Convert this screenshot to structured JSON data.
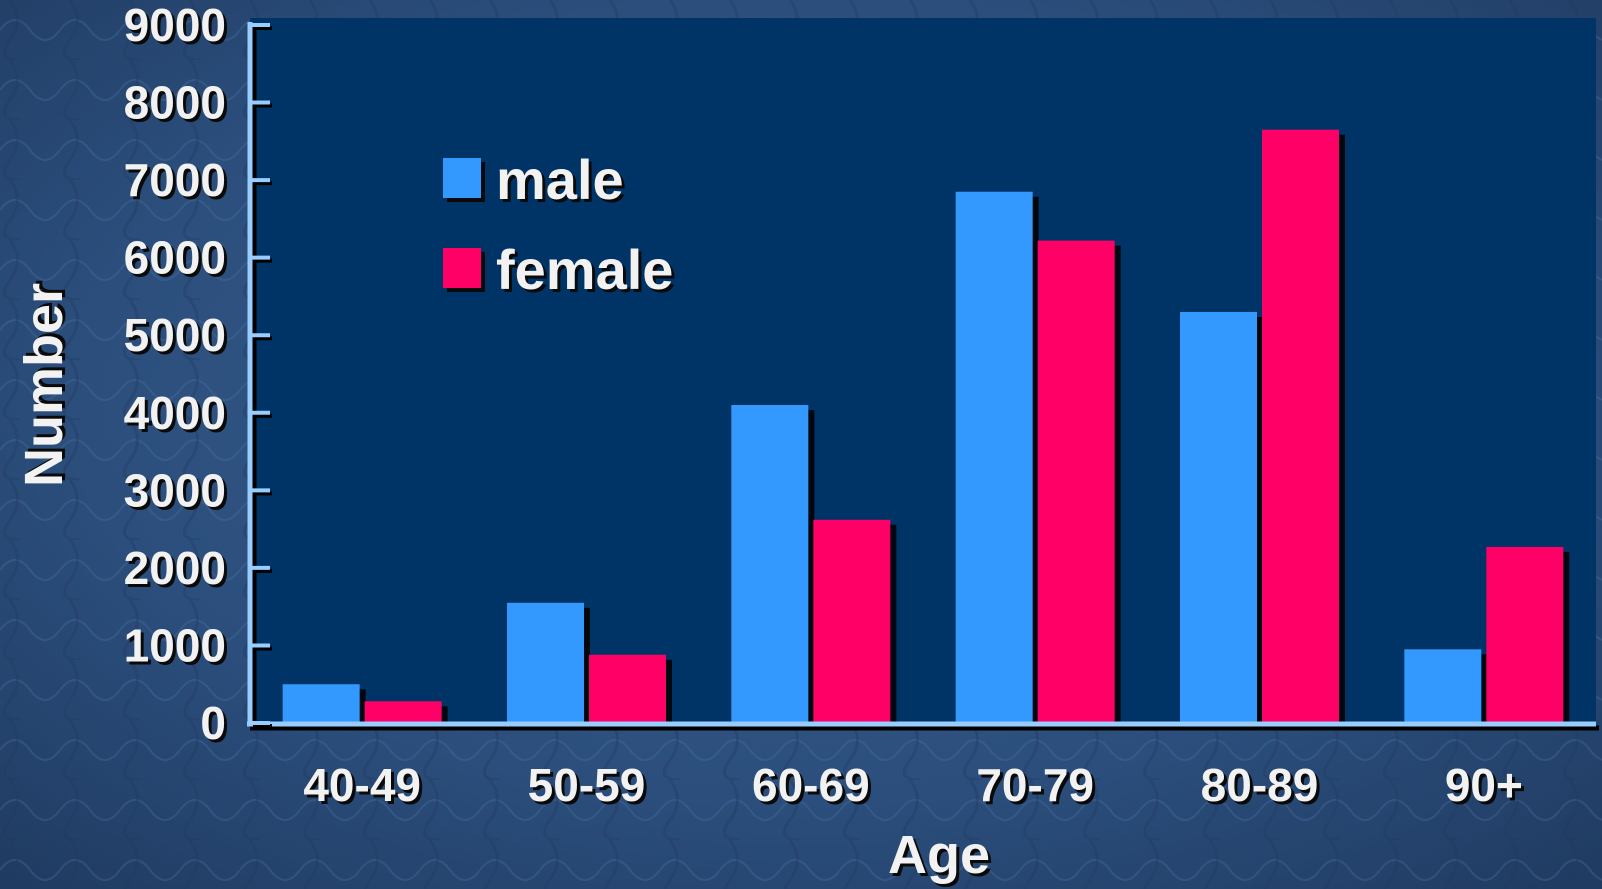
{
  "chart_data": {
    "type": "bar",
    "categories": [
      "40-49",
      "50-59",
      "60-69",
      "70-79",
      "80-89",
      "90+"
    ],
    "series": [
      {
        "name": "male",
        "values": [
          500,
          1550,
          4100,
          6850,
          5300,
          950
        ]
      },
      {
        "name": "female",
        "values": [
          280,
          880,
          2620,
          6220,
          7650,
          2270
        ]
      }
    ],
    "xlabel": "Age",
    "ylabel": "Number",
    "ylim": [
      0,
      9000
    ],
    "yticks": [
      0,
      1000,
      2000,
      3000,
      4000,
      5000,
      6000,
      7000,
      8000,
      9000
    ],
    "grid": false,
    "legend_position": "top-left",
    "colors": {
      "male": "#3399ff",
      "female": "#ff0066",
      "plot_background": "#003366",
      "page_background": "#2b4e7c",
      "axis": "#99ccff",
      "text": "#f2f2f2"
    }
  }
}
